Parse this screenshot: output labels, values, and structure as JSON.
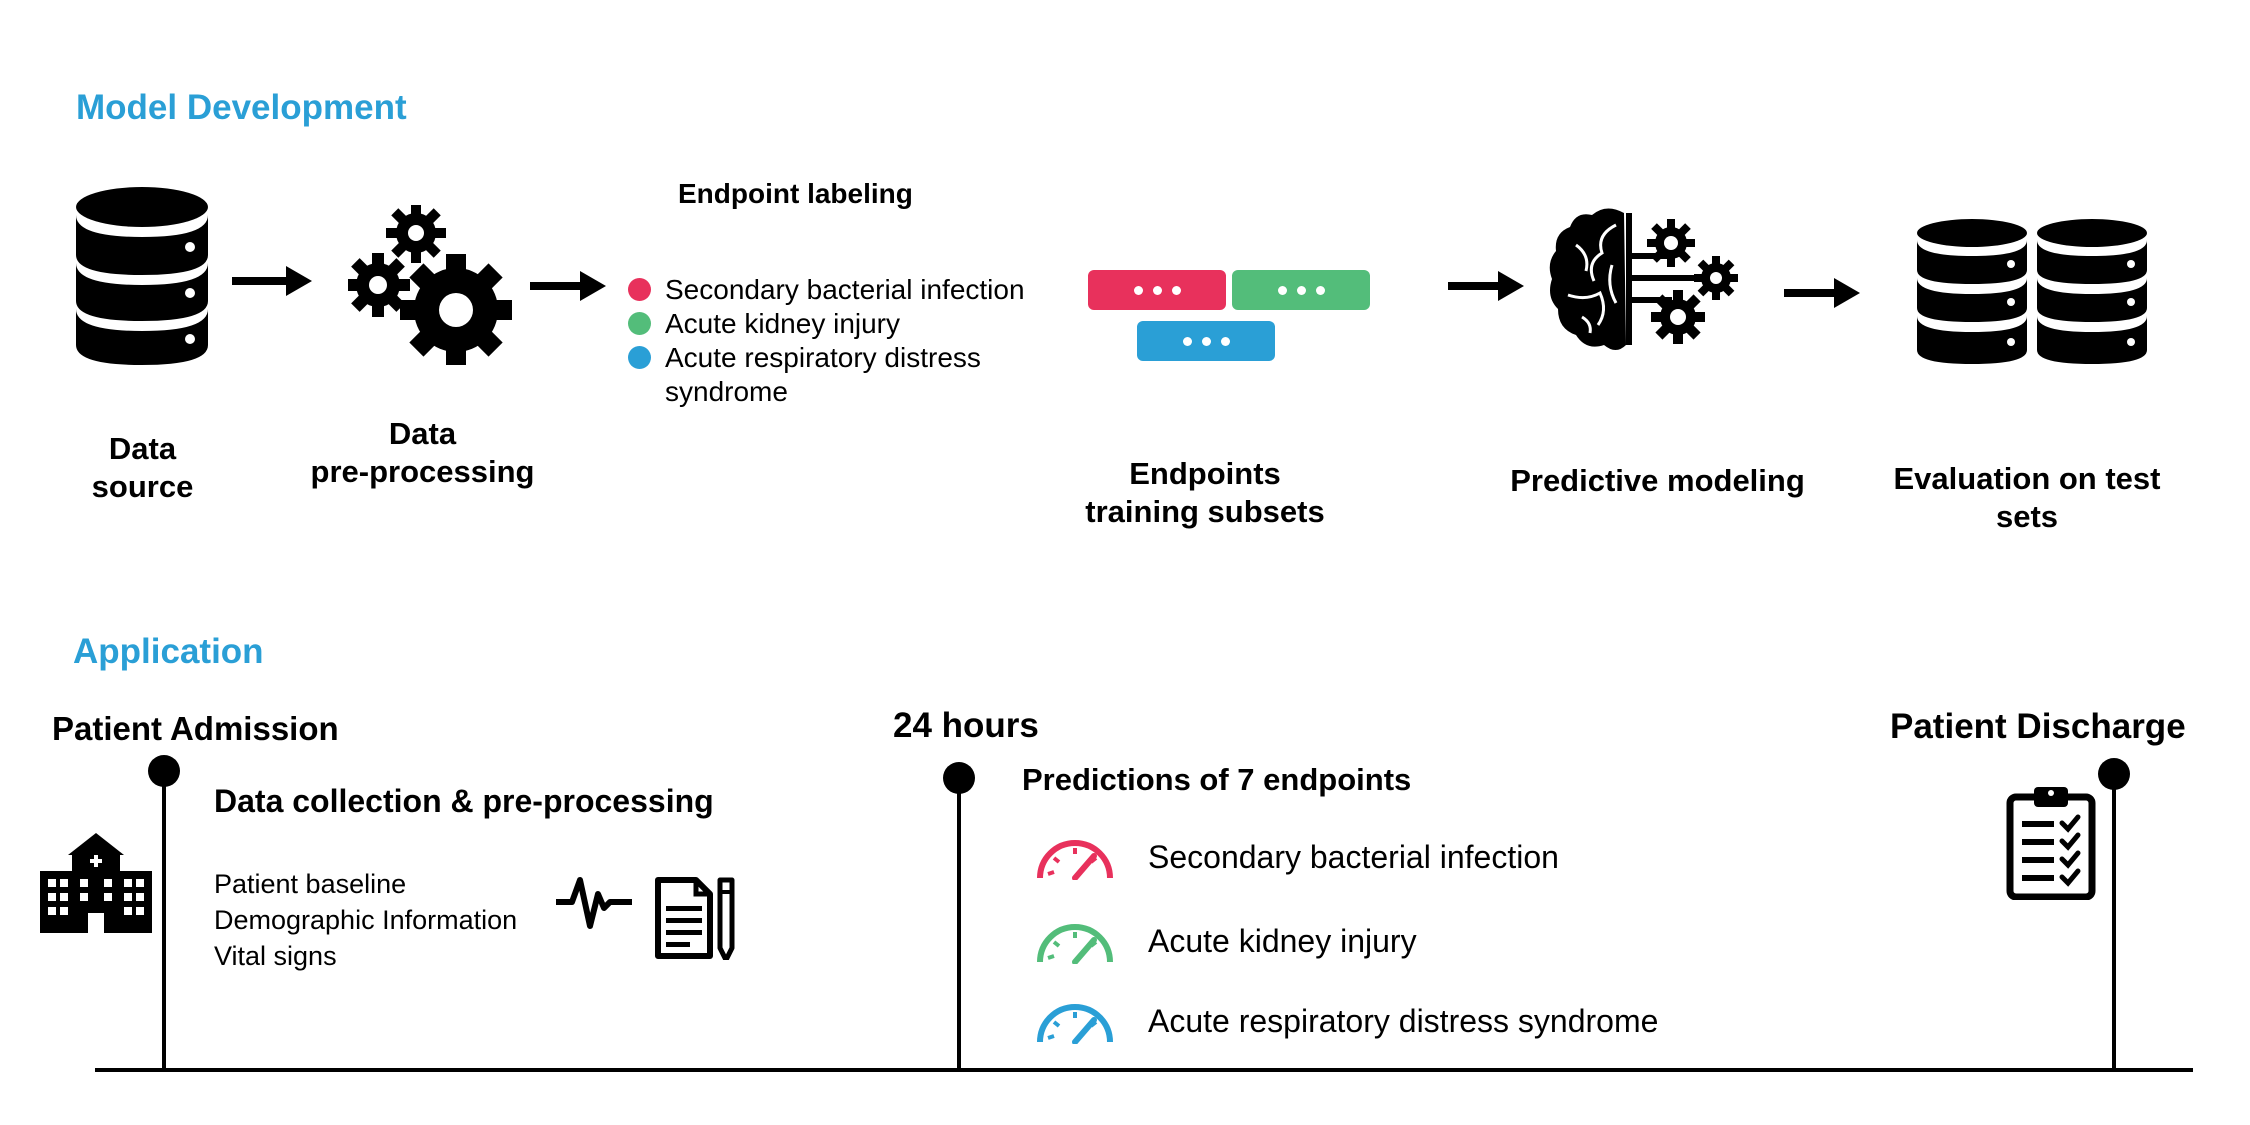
{
  "colors": {
    "accent": "#2a9fd6",
    "red": "#e8315c",
    "green": "#53bd7a",
    "blue": "#2a9fd6"
  },
  "model_development": {
    "title": "Model Development",
    "data_source_label": "Data\nsource",
    "preprocessing_label": "Data\npre-processing",
    "endpoint_labeling": {
      "title": "Endpoint labeling",
      "items": [
        {
          "label": "Secondary bacterial infection",
          "color": "#e8315c"
        },
        {
          "label": "Acute kidney injury",
          "color": "#53bd7a"
        },
        {
          "label": "Acute respiratory distress\nsyndrome",
          "color": "#2a9fd6"
        }
      ]
    },
    "training_subsets_label": "Endpoints\ntraining subsets",
    "predictive_modeling_label": "Predictive modeling",
    "evaluation_label": "Evaluation on test\nsets"
  },
  "application": {
    "title": "Application",
    "admission": "Patient Admission",
    "collection_title": "Data collection & pre-processing",
    "collection_items": [
      "Patient baseline",
      "Demographic Information",
      "Vital signs"
    ],
    "hours_label": "24 hours",
    "predictions_title": "Predictions of 7 endpoints",
    "predictions": [
      {
        "label": "Secondary bacterial infection",
        "color": "#e8315c"
      },
      {
        "label": "Acute kidney injury",
        "color": "#53bd7a"
      },
      {
        "label": "Acute respiratory distress syndrome",
        "color": "#2a9fd6"
      }
    ],
    "discharge": "Patient Discharge"
  },
  "icons": [
    "database-icon",
    "gears-icon",
    "arrow-icon",
    "training-cards-icon",
    "brain-gear-icon",
    "test-databases-icon",
    "hospital-icon",
    "heartbeat-icon",
    "document-pen-icon",
    "gauge-icon",
    "clipboard-checklist-icon"
  ]
}
